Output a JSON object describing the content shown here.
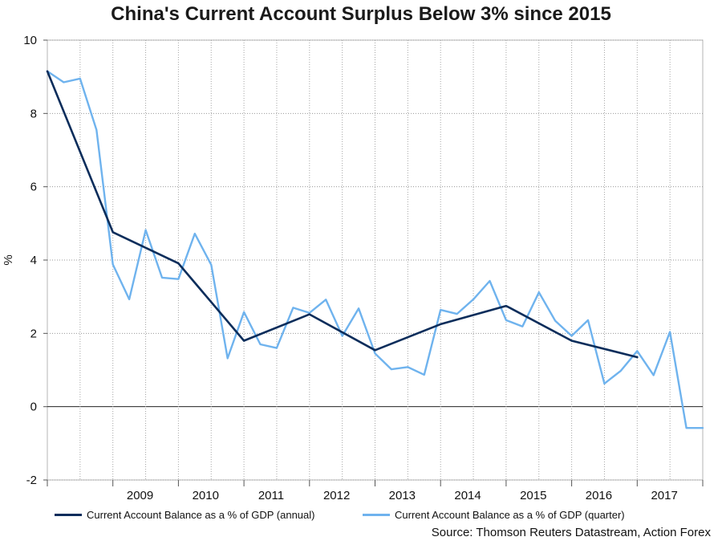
{
  "chart_data": {
    "type": "line",
    "title": "China's Current Account Surplus Below 3% since 2015",
    "ylabel": "%",
    "xlabel": "",
    "ylim": [
      -2,
      10
    ],
    "yticks": [
      -2,
      0,
      2,
      4,
      6,
      8,
      10
    ],
    "xlim": [
      2008,
      2018
    ],
    "xtick_labels": [
      "2009",
      "2010",
      "2011",
      "2012",
      "2013",
      "2014",
      "2015",
      "2016",
      "2017"
    ],
    "grid": true,
    "legend_position": "bottom",
    "source": "Source: Thomson Reuters Datastream, Action Forex",
    "series": [
      {
        "name": "Current Account Balance as a % of GDP (annual)",
        "color": "#0b2d5b",
        "x": [
          "2008-01",
          "2009-01",
          "2010-01",
          "2011-01",
          "2012-01",
          "2013-01",
          "2014-01",
          "2015-01",
          "2016-01",
          "2017-01"
        ],
        "values": [
          9.15,
          4.76,
          3.91,
          1.8,
          2.52,
          1.54,
          2.25,
          2.75,
          1.8,
          1.35
        ]
      },
      {
        "name": "Current Account Balance as a % of GDP (quarter)",
        "color": "#6fb3ee",
        "x": [
          "2008-Q1",
          "2008-Q2",
          "2008-Q3",
          "2008-Q4",
          "2009-Q1",
          "2009-Q2",
          "2009-Q3",
          "2009-Q4",
          "2010-Q1",
          "2010-Q2",
          "2010-Q3",
          "2010-Q4",
          "2011-Q1",
          "2011-Q2",
          "2011-Q3",
          "2011-Q4",
          "2012-Q1",
          "2012-Q2",
          "2012-Q3",
          "2012-Q4",
          "2013-Q1",
          "2013-Q2",
          "2013-Q3",
          "2013-Q4",
          "2014-Q1",
          "2014-Q2",
          "2014-Q3",
          "2014-Q4",
          "2015-Q1",
          "2015-Q2",
          "2015-Q3",
          "2015-Q4",
          "2016-Q1",
          "2016-Q2",
          "2016-Q3",
          "2016-Q4",
          "2017-Q1",
          "2017-Q2",
          "2017-Q3",
          "2017-Q4",
          "2018-Q1"
        ],
        "values": [
          9.15,
          8.85,
          8.95,
          7.55,
          3.88,
          2.93,
          4.82,
          3.52,
          3.48,
          4.72,
          3.87,
          1.32,
          2.58,
          1.7,
          1.6,
          2.7,
          2.56,
          2.92,
          1.93,
          2.68,
          1.45,
          1.02,
          1.08,
          0.87,
          2.64,
          2.53,
          2.93,
          3.43,
          2.36,
          2.19,
          3.12,
          2.34,
          1.93,
          2.36,
          0.63,
          0.98,
          1.52,
          0.86,
          2.04,
          -0.58,
          -0.58
        ]
      }
    ]
  }
}
